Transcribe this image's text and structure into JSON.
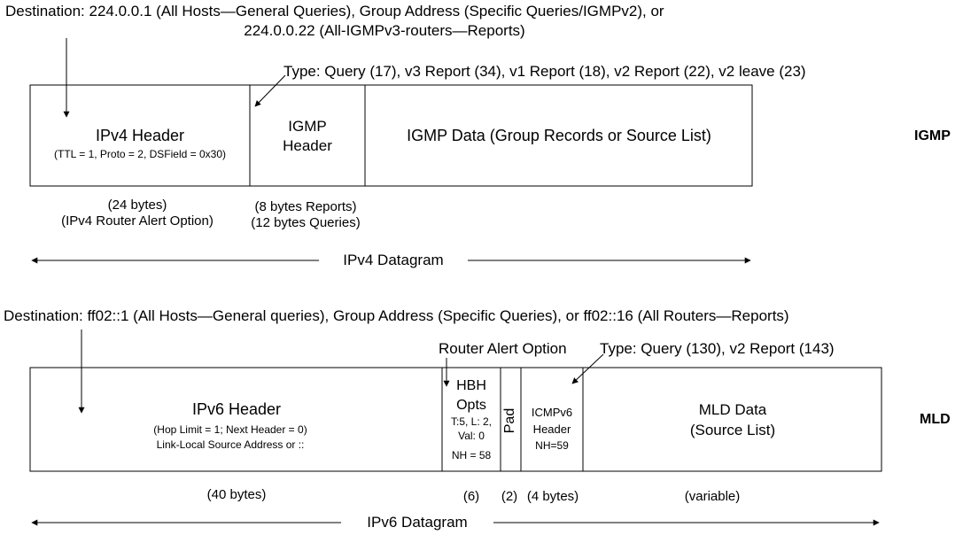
{
  "igmp": {
    "destination_line1": "Destination: 224.0.0.1 (All Hosts—General Queries), Group Address (Specific Queries/IGMPv2), or",
    "destination_line2": "224.0.0.22 (All-IGMPv3-routers—Reports)",
    "type_label": "Type: Query (17), v3 Report (34), v1 Report (18), v2 Report (22), v2 leave (23)",
    "ipv4_header": "IPv4 Header",
    "ipv4_header_detail": "(TTL = 1, Proto = 2, DSField = 0x30)",
    "igmp_header_line1": "IGMP",
    "igmp_header_line2": "Header",
    "igmp_data": "IGMP Data (Group Records or Source List)",
    "side_label": "IGMP",
    "size_ipv4_line1": "(24 bytes)",
    "size_ipv4_line2": "(IPv4 Router Alert Option)",
    "size_igmp_line1": "(8 bytes Reports)",
    "size_igmp_line2": "(12 bytes Queries)",
    "datagram": "IPv4 Datagram"
  },
  "mld": {
    "destination": "Destination:   ff02::1 (All Hosts—General queries), Group Address (Specific Queries), or ff02::16 (All Routers—Reports)",
    "router_alert": "Router Alert Option",
    "type_label": "Type: Query (130), v2 Report (143)",
    "ipv6_header": "IPv6 Header",
    "ipv6_detail_line1": "(Hop Limit = 1; Next  Header = 0)",
    "ipv6_detail_line2": "Link-Local Source Address or ::",
    "hbh_line1": "HBH",
    "hbh_line2": "Opts",
    "hbh_detail_line1": "T:5, L: 2,",
    "hbh_detail_line2": "Val: 0",
    "hbh_nh": "NH = 58",
    "pad": "Pad",
    "icmpv6_line1": "ICMPv6",
    "icmpv6_line2": "Header",
    "icmpv6_nh": "NH=59",
    "mld_data_line1": "MLD Data",
    "mld_data_line2": "(Source List)",
    "side_label": "MLD",
    "size_ipv6": "(40 bytes)",
    "size_hbh": "(6)",
    "size_pad": "(2)",
    "size_icmpv6": "(4 bytes)",
    "size_data": "(variable)",
    "datagram": "IPv6 Datagram"
  }
}
